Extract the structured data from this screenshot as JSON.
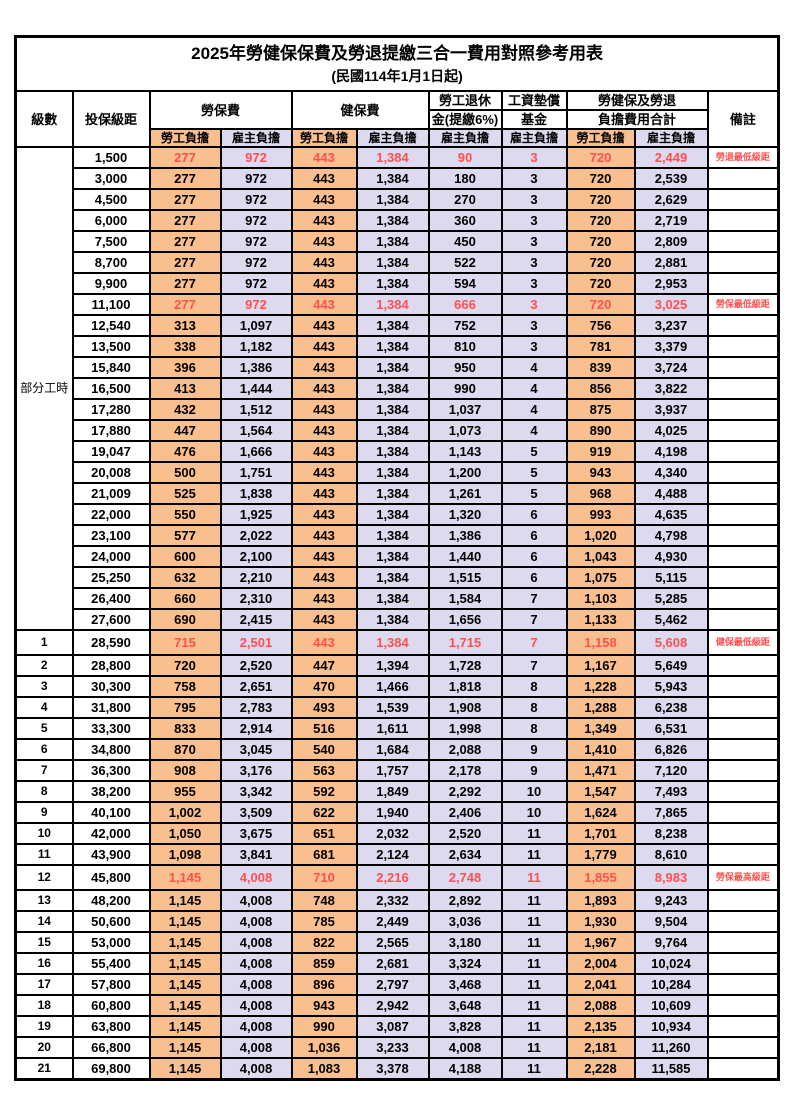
{
  "title": "2025年勞健保保費及勞退提繳三合一費用對照參考用表",
  "subtitle": "(民國114年1月1日起)",
  "columns": {
    "level": "級數",
    "bracket": "投保級距",
    "labor_insurance": "勞保費",
    "health_insurance": "健保費",
    "pension_line1": "勞工退休",
    "pension_line2": "金(提繳6%)",
    "wage_fund_line1": "工資墊償",
    "wage_fund_line2": "基金",
    "total_line1": "勞健保及勞退",
    "total_line2": "負擔費用合計",
    "remark": "備註",
    "employee_label": "勞工負擔",
    "employer_label": "雇主負擔"
  },
  "part_time_label": "部分工時",
  "colors": {
    "employee_bg": "#FABF8F",
    "employer_bg": "#DDD9EE",
    "highlight_text": "#FF5050",
    "border": "#000000"
  },
  "rows": [
    {
      "level": "",
      "bracket": "1,500",
      "values": [
        "277",
        "972",
        "443",
        "1,384",
        "90",
        "3",
        "720",
        "2,449"
      ],
      "remark": "勞退最低級距",
      "highlight": true,
      "tall": false
    },
    {
      "level": "",
      "bracket": "3,000",
      "values": [
        "277",
        "972",
        "443",
        "1,384",
        "180",
        "3",
        "720",
        "2,539"
      ],
      "remark": "",
      "highlight": false,
      "tall": false
    },
    {
      "level": "",
      "bracket": "4,500",
      "values": [
        "277",
        "972",
        "443",
        "1,384",
        "270",
        "3",
        "720",
        "2,629"
      ],
      "remark": "",
      "highlight": false,
      "tall": false
    },
    {
      "level": "",
      "bracket": "6,000",
      "values": [
        "277",
        "972",
        "443",
        "1,384",
        "360",
        "3",
        "720",
        "2,719"
      ],
      "remark": "",
      "highlight": false,
      "tall": false
    },
    {
      "level": "",
      "bracket": "7,500",
      "values": [
        "277",
        "972",
        "443",
        "1,384",
        "450",
        "3",
        "720",
        "2,809"
      ],
      "remark": "",
      "highlight": false,
      "tall": false
    },
    {
      "level": "",
      "bracket": "8,700",
      "values": [
        "277",
        "972",
        "443",
        "1,384",
        "522",
        "3",
        "720",
        "2,881"
      ],
      "remark": "",
      "highlight": false,
      "tall": false
    },
    {
      "level": "",
      "bracket": "9,900",
      "values": [
        "277",
        "972",
        "443",
        "1,384",
        "594",
        "3",
        "720",
        "2,953"
      ],
      "remark": "",
      "highlight": false,
      "tall": false
    },
    {
      "level": "",
      "bracket": "11,100",
      "values": [
        "277",
        "972",
        "443",
        "1,384",
        "666",
        "3",
        "720",
        "3,025"
      ],
      "remark": "勞保最低級距",
      "highlight": true,
      "tall": false
    },
    {
      "level": "",
      "bracket": "12,540",
      "values": [
        "313",
        "1,097",
        "443",
        "1,384",
        "752",
        "3",
        "756",
        "3,237"
      ],
      "remark": "",
      "highlight": false,
      "tall": false
    },
    {
      "level": "",
      "bracket": "13,500",
      "values": [
        "338",
        "1,182",
        "443",
        "1,384",
        "810",
        "3",
        "781",
        "3,379"
      ],
      "remark": "",
      "highlight": false,
      "tall": false
    },
    {
      "level": "",
      "bracket": "15,840",
      "values": [
        "396",
        "1,386",
        "443",
        "1,384",
        "950",
        "4",
        "839",
        "3,724"
      ],
      "remark": "",
      "highlight": false,
      "tall": false
    },
    {
      "level": "",
      "bracket": "16,500",
      "values": [
        "413",
        "1,444",
        "443",
        "1,384",
        "990",
        "4",
        "856",
        "3,822"
      ],
      "remark": "",
      "highlight": false,
      "tall": false
    },
    {
      "level": "",
      "bracket": "17,280",
      "values": [
        "432",
        "1,512",
        "443",
        "1,384",
        "1,037",
        "4",
        "875",
        "3,937"
      ],
      "remark": "",
      "highlight": false,
      "tall": false
    },
    {
      "level": "",
      "bracket": "17,880",
      "values": [
        "447",
        "1,564",
        "443",
        "1,384",
        "1,073",
        "4",
        "890",
        "4,025"
      ],
      "remark": "",
      "highlight": false,
      "tall": false
    },
    {
      "level": "",
      "bracket": "19,047",
      "values": [
        "476",
        "1,666",
        "443",
        "1,384",
        "1,143",
        "5",
        "919",
        "4,198"
      ],
      "remark": "",
      "highlight": false,
      "tall": false
    },
    {
      "level": "",
      "bracket": "20,008",
      "values": [
        "500",
        "1,751",
        "443",
        "1,384",
        "1,200",
        "5",
        "943",
        "4,340"
      ],
      "remark": "",
      "highlight": false,
      "tall": false
    },
    {
      "level": "",
      "bracket": "21,009",
      "values": [
        "525",
        "1,838",
        "443",
        "1,384",
        "1,261",
        "5",
        "968",
        "4,488"
      ],
      "remark": "",
      "highlight": false,
      "tall": false
    },
    {
      "level": "",
      "bracket": "22,000",
      "values": [
        "550",
        "1,925",
        "443",
        "1,384",
        "1,320",
        "6",
        "993",
        "4,635"
      ],
      "remark": "",
      "highlight": false,
      "tall": false
    },
    {
      "level": "",
      "bracket": "23,100",
      "values": [
        "577",
        "2,022",
        "443",
        "1,384",
        "1,386",
        "6",
        "1,020",
        "4,798"
      ],
      "remark": "",
      "highlight": false,
      "tall": false
    },
    {
      "level": "",
      "bracket": "24,000",
      "values": [
        "600",
        "2,100",
        "443",
        "1,384",
        "1,440",
        "6",
        "1,043",
        "4,930"
      ],
      "remark": "",
      "highlight": false,
      "tall": false
    },
    {
      "level": "",
      "bracket": "25,250",
      "values": [
        "632",
        "2,210",
        "443",
        "1,384",
        "1,515",
        "6",
        "1,075",
        "5,115"
      ],
      "remark": "",
      "highlight": false,
      "tall": false
    },
    {
      "level": "",
      "bracket": "26,400",
      "values": [
        "660",
        "2,310",
        "443",
        "1,384",
        "1,584",
        "7",
        "1,103",
        "5,285"
      ],
      "remark": "",
      "highlight": false,
      "tall": false
    },
    {
      "level": "",
      "bracket": "27,600",
      "values": [
        "690",
        "2,415",
        "443",
        "1,384",
        "1,656",
        "7",
        "1,133",
        "5,462"
      ],
      "remark": "",
      "highlight": false,
      "tall": false
    },
    {
      "level": "1",
      "bracket": "28,590",
      "values": [
        "715",
        "2,501",
        "443",
        "1,384",
        "1,715",
        "7",
        "1,158",
        "5,608"
      ],
      "remark": "健保最低級距",
      "highlight": true,
      "tall": true
    },
    {
      "level": "2",
      "bracket": "28,800",
      "values": [
        "720",
        "2,520",
        "447",
        "1,394",
        "1,728",
        "7",
        "1,167",
        "5,649"
      ],
      "remark": "",
      "highlight": false,
      "tall": false
    },
    {
      "level": "3",
      "bracket": "30,300",
      "values": [
        "758",
        "2,651",
        "470",
        "1,466",
        "1,818",
        "8",
        "1,228",
        "5,943"
      ],
      "remark": "",
      "highlight": false,
      "tall": false
    },
    {
      "level": "4",
      "bracket": "31,800",
      "values": [
        "795",
        "2,783",
        "493",
        "1,539",
        "1,908",
        "8",
        "1,288",
        "6,238"
      ],
      "remark": "",
      "highlight": false,
      "tall": false
    },
    {
      "level": "5",
      "bracket": "33,300",
      "values": [
        "833",
        "2,914",
        "516",
        "1,611",
        "1,998",
        "8",
        "1,349",
        "6,531"
      ],
      "remark": "",
      "highlight": false,
      "tall": false
    },
    {
      "level": "6",
      "bracket": "34,800",
      "values": [
        "870",
        "3,045",
        "540",
        "1,684",
        "2,088",
        "9",
        "1,410",
        "6,826"
      ],
      "remark": "",
      "highlight": false,
      "tall": false
    },
    {
      "level": "7",
      "bracket": "36,300",
      "values": [
        "908",
        "3,176",
        "563",
        "1,757",
        "2,178",
        "9",
        "1,471",
        "7,120"
      ],
      "remark": "",
      "highlight": false,
      "tall": false
    },
    {
      "level": "8",
      "bracket": "38,200",
      "values": [
        "955",
        "3,342",
        "592",
        "1,849",
        "2,292",
        "10",
        "1,547",
        "7,493"
      ],
      "remark": "",
      "highlight": false,
      "tall": false
    },
    {
      "level": "9",
      "bracket": "40,100",
      "values": [
        "1,002",
        "3,509",
        "622",
        "1,940",
        "2,406",
        "10",
        "1,624",
        "7,865"
      ],
      "remark": "",
      "highlight": false,
      "tall": false
    },
    {
      "level": "10",
      "bracket": "42,000",
      "values": [
        "1,050",
        "3,675",
        "651",
        "2,032",
        "2,520",
        "11",
        "1,701",
        "8,238"
      ],
      "remark": "",
      "highlight": false,
      "tall": false
    },
    {
      "level": "11",
      "bracket": "43,900",
      "values": [
        "1,098",
        "3,841",
        "681",
        "2,124",
        "2,634",
        "11",
        "1,779",
        "8,610"
      ],
      "remark": "",
      "highlight": false,
      "tall": false
    },
    {
      "level": "12",
      "bracket": "45,800",
      "values": [
        "1,145",
        "4,008",
        "710",
        "2,216",
        "2,748",
        "11",
        "1,855",
        "8,983"
      ],
      "remark": "勞保最高級距",
      "highlight": true,
      "tall": true
    },
    {
      "level": "13",
      "bracket": "48,200",
      "values": [
        "1,145",
        "4,008",
        "748",
        "2,332",
        "2,892",
        "11",
        "1,893",
        "9,243"
      ],
      "remark": "",
      "highlight": false,
      "tall": false
    },
    {
      "level": "14",
      "bracket": "50,600",
      "values": [
        "1,145",
        "4,008",
        "785",
        "2,449",
        "3,036",
        "11",
        "1,930",
        "9,504"
      ],
      "remark": "",
      "highlight": false,
      "tall": false
    },
    {
      "level": "15",
      "bracket": "53,000",
      "values": [
        "1,145",
        "4,008",
        "822",
        "2,565",
        "3,180",
        "11",
        "1,967",
        "9,764"
      ],
      "remark": "",
      "highlight": false,
      "tall": false
    },
    {
      "level": "16",
      "bracket": "55,400",
      "values": [
        "1,145",
        "4,008",
        "859",
        "2,681",
        "3,324",
        "11",
        "2,004",
        "10,024"
      ],
      "remark": "",
      "highlight": false,
      "tall": false
    },
    {
      "level": "17",
      "bracket": "57,800",
      "values": [
        "1,145",
        "4,008",
        "896",
        "2,797",
        "3,468",
        "11",
        "2,041",
        "10,284"
      ],
      "remark": "",
      "highlight": false,
      "tall": false
    },
    {
      "level": "18",
      "bracket": "60,800",
      "values": [
        "1,145",
        "4,008",
        "943",
        "2,942",
        "3,648",
        "11",
        "2,088",
        "10,609"
      ],
      "remark": "",
      "highlight": false,
      "tall": false
    },
    {
      "level": "19",
      "bracket": "63,800",
      "values": [
        "1,145",
        "4,008",
        "990",
        "3,087",
        "3,828",
        "11",
        "2,135",
        "10,934"
      ],
      "remark": "",
      "highlight": false,
      "tall": false
    },
    {
      "level": "20",
      "bracket": "66,800",
      "values": [
        "1,145",
        "4,008",
        "1,036",
        "3,233",
        "4,008",
        "11",
        "2,181",
        "11,260"
      ],
      "remark": "",
      "highlight": false,
      "tall": false
    },
    {
      "level": "21",
      "bracket": "69,800",
      "values": [
        "1,145",
        "4,008",
        "1,083",
        "3,378",
        "4,188",
        "11",
        "2,228",
        "11,585"
      ],
      "remark": "",
      "highlight": false,
      "tall": false
    }
  ],
  "value_column_kinds": [
    "emp",
    "er",
    "emp",
    "er",
    "er",
    "er",
    "emp",
    "er"
  ],
  "value_column_names": [
    "labor-employee",
    "labor-employer",
    "health-employee",
    "health-employer",
    "pension-employer",
    "wage-fund-employer",
    "total-employee",
    "total-employer"
  ],
  "part_time_rowspan": 23
}
